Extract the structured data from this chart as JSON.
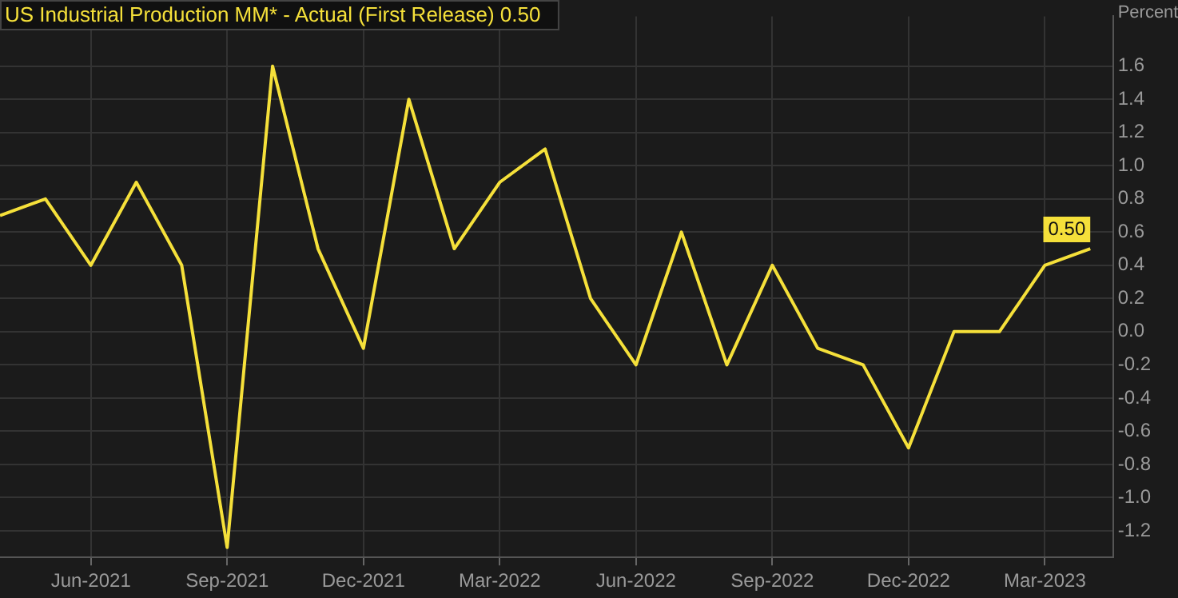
{
  "chart_data": {
    "type": "line",
    "title": "US Industrial Production MM* - Actual (First Release) 0.50",
    "ylabel": "Percent",
    "x": [
      "2021-04",
      "2021-05",
      "2021-06",
      "2021-07",
      "2021-08",
      "2021-09",
      "2021-10",
      "2021-11",
      "2021-12",
      "2022-01",
      "2022-02",
      "2022-03",
      "2022-04",
      "2022-05",
      "2022-06",
      "2022-07",
      "2022-08",
      "2022-09",
      "2022-10",
      "2022-11",
      "2022-12",
      "2023-01",
      "2023-02",
      "2023-03",
      "2023-04"
    ],
    "series": [
      {
        "color": "#f5e03a",
        "values": [
          0.7,
          0.8,
          0.4,
          0.9,
          0.4,
          -1.3,
          1.6,
          0.5,
          -0.1,
          1.4,
          0.5,
          0.9,
          1.1,
          0.2,
          -0.2,
          0.6,
          -0.2,
          0.4,
          -0.1,
          -0.2,
          -0.7,
          0.0,
          0.0,
          0.4,
          0.5
        ],
        "value_labels": [
          null,
          null,
          null,
          null,
          null,
          null,
          null,
          null,
          null,
          null,
          null,
          null,
          null,
          null,
          null,
          null,
          null,
          null,
          null,
          null,
          null,
          null,
          null,
          null,
          "0.50"
        ]
      }
    ],
    "xlim": [
      "2021-04",
      "2023-04-16"
    ],
    "xticks": [
      {
        "value": "2021-06",
        "label": "Jun-2021"
      },
      {
        "value": "2021-09",
        "label": "Sep-2021"
      },
      {
        "value": "2021-12",
        "label": "Dec-2021"
      },
      {
        "value": "2022-03",
        "label": "Mar-2022"
      },
      {
        "value": "2022-06",
        "label": "Jun-2022"
      },
      {
        "value": "2022-09",
        "label": "Sep-2022"
      },
      {
        "value": "2022-12",
        "label": "Dec-2022"
      },
      {
        "value": "2023-03",
        "label": "Mar-2023"
      }
    ],
    "ylim": [
      -1.36,
      1.9
    ],
    "yticks": [
      {
        "value": -1.2,
        "label": "-1.2"
      },
      {
        "value": -1.0,
        "label": "-1.0"
      },
      {
        "value": -0.8,
        "label": "-0.8"
      },
      {
        "value": -0.6,
        "label": "-0.6"
      },
      {
        "value": -0.4,
        "label": "-0.4"
      },
      {
        "value": -0.2,
        "label": "-0.2"
      },
      {
        "value": 0,
        "label": "0.0"
      },
      {
        "value": 0.2,
        "label": "0.2"
      },
      {
        "value": 0.4,
        "label": "0.4"
      },
      {
        "value": 0.6,
        "label": "0.6"
      },
      {
        "value": 0.8,
        "label": "0.8"
      },
      {
        "value": 1.0,
        "label": "1.0"
      },
      {
        "value": 1.2,
        "label": "1.2"
      },
      {
        "value": 1.4,
        "label": "1.4"
      },
      {
        "value": 1.6,
        "label": "1.6"
      }
    ],
    "grid": true,
    "legend": false,
    "marker": "none",
    "line_style": "solid"
  }
}
